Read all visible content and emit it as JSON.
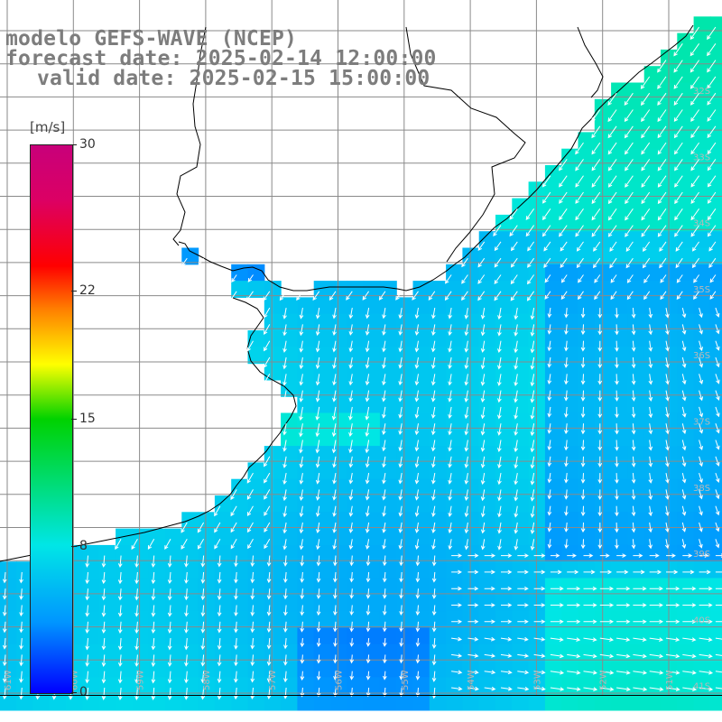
{
  "title": {
    "line1": "modelo GEFS-WAVE (NCEP)",
    "line2": "forecast date: 2025-02-14 12:00:00",
    "line3": "valid date: 2025-02-15 15:00:00"
  },
  "colorbar": {
    "units": "[m/s]",
    "ticks": [
      {
        "label": "30",
        "value": 30
      },
      {
        "label": "22",
        "value": 22
      },
      {
        "label": "15",
        "value": 15
      },
      {
        "label": "8",
        "value": 8
      },
      {
        "label": "0",
        "value": 0
      }
    ],
    "min": 0,
    "max": 30
  },
  "lat_labels": [
    "32S",
    "33S",
    "34S",
    "35S",
    "36S",
    "37S",
    "38S",
    "39S",
    "40S",
    "41S"
  ],
  "lon_labels": [
    "61W",
    "60W",
    "59W",
    "58W",
    "57W",
    "56W",
    "55W",
    "54W",
    "53W",
    "52W",
    "51W"
  ],
  "colors": {
    "land": "#ffffff",
    "coast": "#000000",
    "grid": "#8a8a8a",
    "arrow": "#ffffff",
    "title": "#7d7d7d"
  }
}
